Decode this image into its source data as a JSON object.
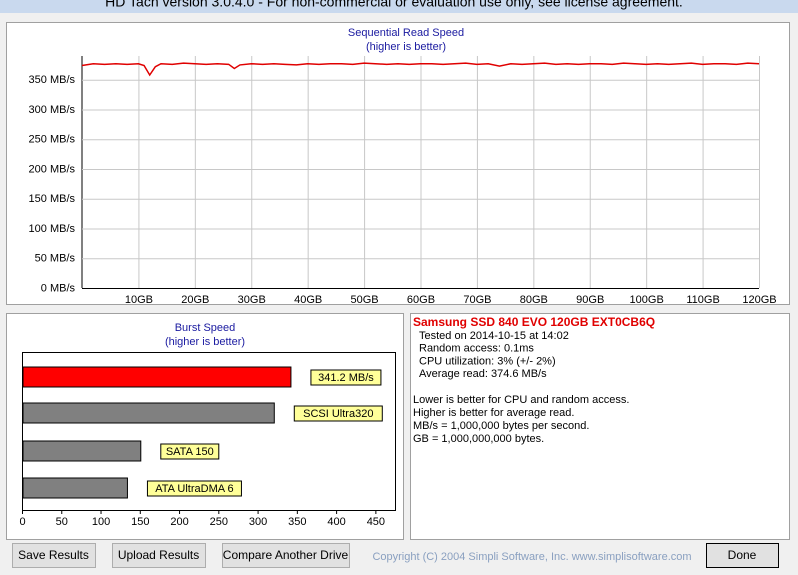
{
  "window": {
    "title": "HD Tach version 3.0.4.0  - For non-commercial or evaluation use only, see license agreement."
  },
  "sequential": {
    "type": "line",
    "title": "Sequential Read Speed",
    "subtitle": "(higher is better)",
    "color": "#e00000",
    "x": [
      0,
      2,
      4,
      6,
      8,
      10,
      11,
      12,
      13,
      14,
      16,
      18,
      20,
      22,
      24,
      26,
      27,
      28,
      30,
      32,
      34,
      36,
      38,
      40,
      42,
      44,
      46,
      48,
      50,
      52,
      54,
      56,
      58,
      60,
      62,
      64,
      66,
      68,
      70,
      72,
      74,
      76,
      78,
      80,
      82,
      84,
      86,
      88,
      90,
      92,
      94,
      96,
      98,
      100,
      102,
      104,
      106,
      108,
      110,
      112,
      114,
      116,
      118,
      120
    ],
    "values": [
      374,
      377,
      376,
      377,
      376,
      377,
      374,
      358,
      372,
      377,
      376,
      378,
      377,
      376,
      377,
      376,
      369,
      375,
      377,
      376,
      377,
      376,
      375,
      377,
      376,
      377,
      377,
      376,
      378,
      377,
      376,
      377,
      376,
      377,
      377,
      376,
      377,
      378,
      376,
      377,
      373,
      377,
      376,
      377,
      378,
      376,
      377,
      376,
      377,
      377,
      376,
      378,
      377,
      376,
      377,
      376,
      377,
      378,
      376,
      377,
      377,
      376,
      378,
      377
    ],
    "xlim": [
      0,
      120
    ],
    "xticks": [
      {
        "value": 10,
        "label": "10GB"
      },
      {
        "value": 20,
        "label": "20GB"
      },
      {
        "value": 30,
        "label": "30GB"
      },
      {
        "value": 40,
        "label": "40GB"
      },
      {
        "value": 50,
        "label": "50GB"
      },
      {
        "value": 60,
        "label": "60GB"
      },
      {
        "value": 70,
        "label": "70GB"
      },
      {
        "value": 80,
        "label": "80GB"
      },
      {
        "value": 90,
        "label": "90GB"
      },
      {
        "value": 100,
        "label": "100GB"
      },
      {
        "value": 110,
        "label": "110GB"
      },
      {
        "value": 120,
        "label": "120GB"
      }
    ],
    "ylim": [
      0,
      390
    ],
    "yticks": [
      {
        "value": 0,
        "label": "0 MB/s"
      },
      {
        "value": 50,
        "label": "50 MB/s"
      },
      {
        "value": 100,
        "label": "100 MB/s"
      },
      {
        "value": 150,
        "label": "150 MB/s"
      },
      {
        "value": 200,
        "label": "200 MB/s"
      },
      {
        "value": 250,
        "label": "250 MB/s"
      },
      {
        "value": 300,
        "label": "300 MB/s"
      },
      {
        "value": 350,
        "label": "350 MB/s"
      }
    ],
    "grid": true
  },
  "burst": {
    "type": "hbar",
    "title": "Burst Speed",
    "subtitle": "(higher is better)",
    "categories": [
      null,
      "SCSI Ultra320",
      "SATA 150",
      "ATA UltraDMA 6"
    ],
    "values": [
      341.2,
      320,
      150,
      133
    ],
    "value_labels": [
      "341.2 MB/s",
      null,
      null,
      null
    ],
    "colors": [
      "#ff0000",
      "#808080",
      "#808080",
      "#808080"
    ],
    "xlim": [
      0,
      475
    ],
    "xticks": [
      0,
      50,
      100,
      150,
      200,
      250,
      300,
      350,
      400,
      450
    ]
  },
  "info": {
    "drive": "Samsung SSD 840 EVO 120GB EXT0CB6Q",
    "details": [
      "Tested on 2014-10-15 at 14:02",
      "Random access: 0.1ms",
      "CPU utilization: 3% (+/- 2%)",
      "Average read: 374.6 MB/s"
    ],
    "notes": [
      "Lower is better for CPU and random access.",
      "Higher is better for average read.",
      "MB/s = 1,000,000 bytes per second.",
      "GB = 1,000,000,000 bytes."
    ]
  },
  "footer": {
    "buttons": [
      "Save Results",
      "Upload Results",
      "Compare Another Drive",
      "Done"
    ],
    "copyright": "Copyright (C) 2004 Simpli Software, Inc. www.simplisoftware.com"
  }
}
